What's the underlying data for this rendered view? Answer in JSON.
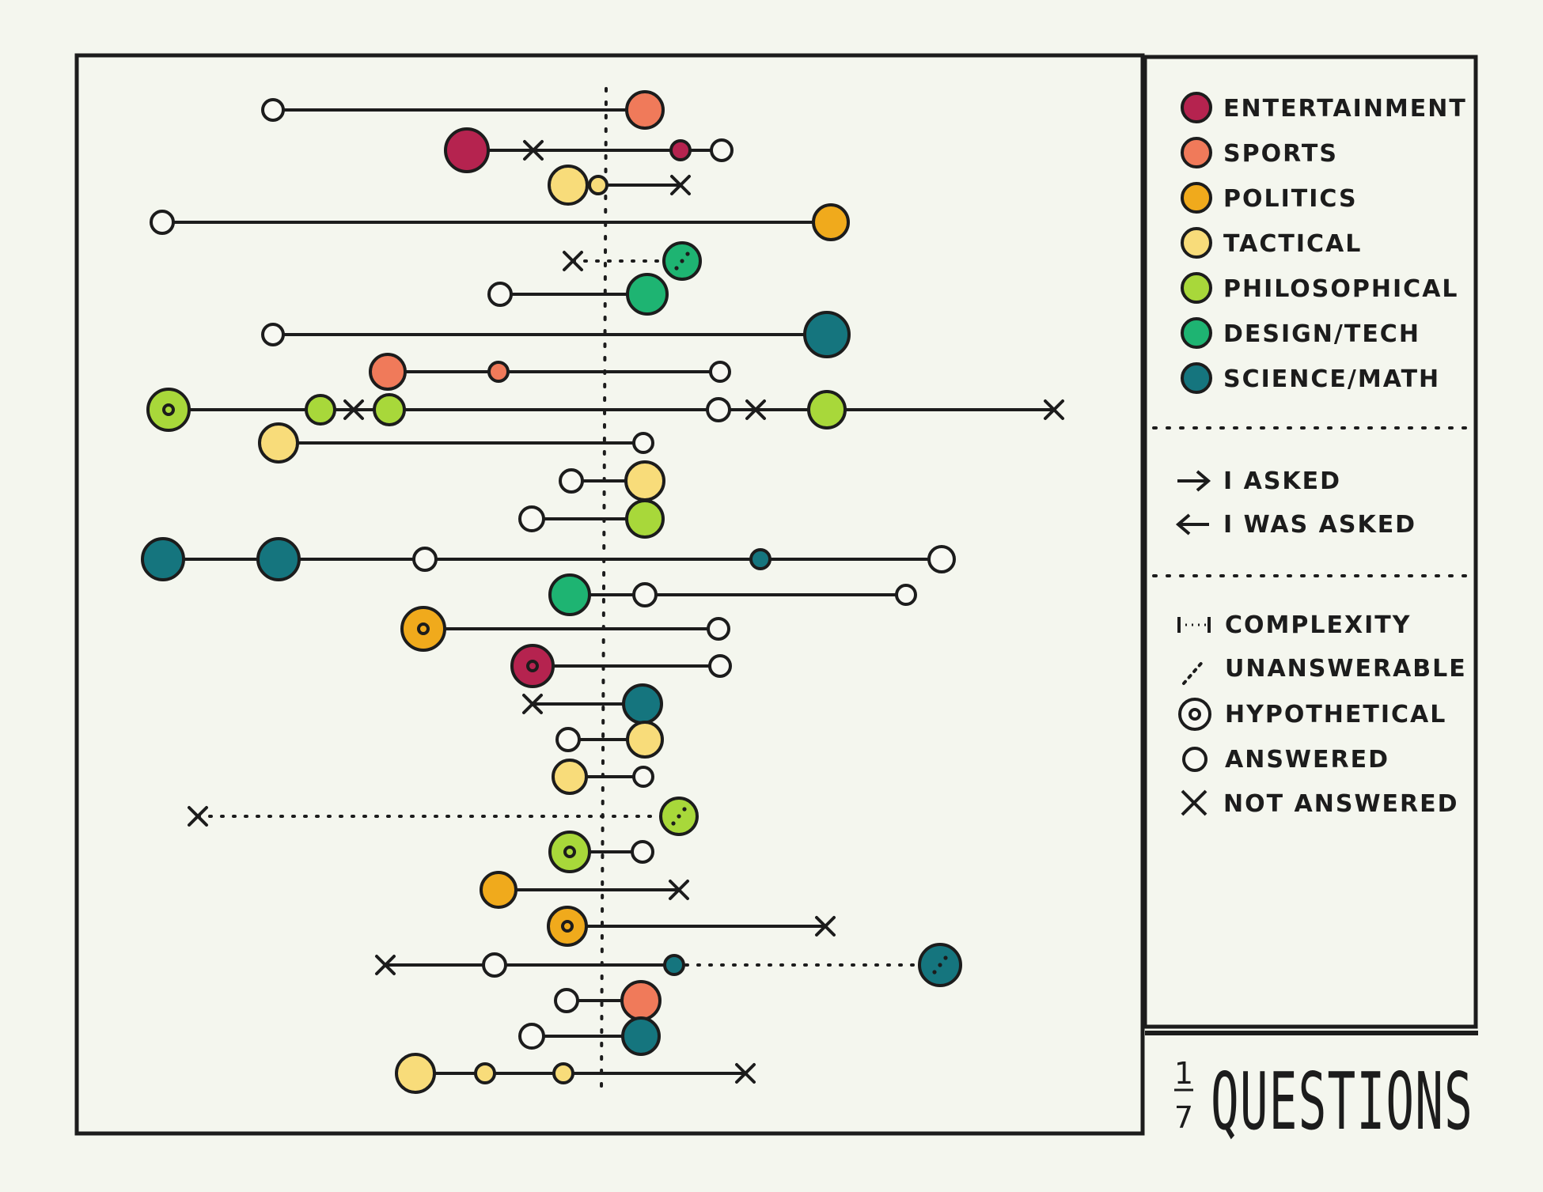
{
  "colors": {
    "entertainment": "#b5234f",
    "sports": "#f07a5a",
    "politics": "#f0aa1c",
    "tactical": "#f8dc7a",
    "philosophical": "#a8d83a",
    "design_tech": "#1eb472",
    "science_math": "#15757e",
    "ink": "#1c1c1c",
    "hollow": "#f7f8f2"
  },
  "legend": {
    "categories": [
      {
        "key": "entertainment",
        "label": "Entertainment"
      },
      {
        "key": "sports",
        "label": "Sports"
      },
      {
        "key": "politics",
        "label": "Politics"
      },
      {
        "key": "tactical",
        "label": "Tactical"
      },
      {
        "key": "philosophical",
        "label": "Philosophical"
      },
      {
        "key": "design_tech",
        "label": "Design/Tech"
      },
      {
        "key": "science_math",
        "label": "Science/Math"
      }
    ],
    "directions": [
      {
        "icon": "arrow-right-icon",
        "label": "I Asked"
      },
      {
        "icon": "arrow-left-icon",
        "label": "I was asked"
      }
    ],
    "markers": [
      {
        "icon": "complexity-icon",
        "label": "Complexity"
      },
      {
        "icon": "unanswerable-icon",
        "label": "Unanswerable"
      },
      {
        "icon": "hypothetical-icon",
        "label": "Hypothetical"
      },
      {
        "icon": "answered-icon",
        "label": "Answered"
      },
      {
        "icon": "not-answered-icon",
        "label": "Not Answered"
      }
    ]
  },
  "title": {
    "fraction_top": "1",
    "fraction_bottom": "7",
    "text": "QUESTIONS"
  }
}
